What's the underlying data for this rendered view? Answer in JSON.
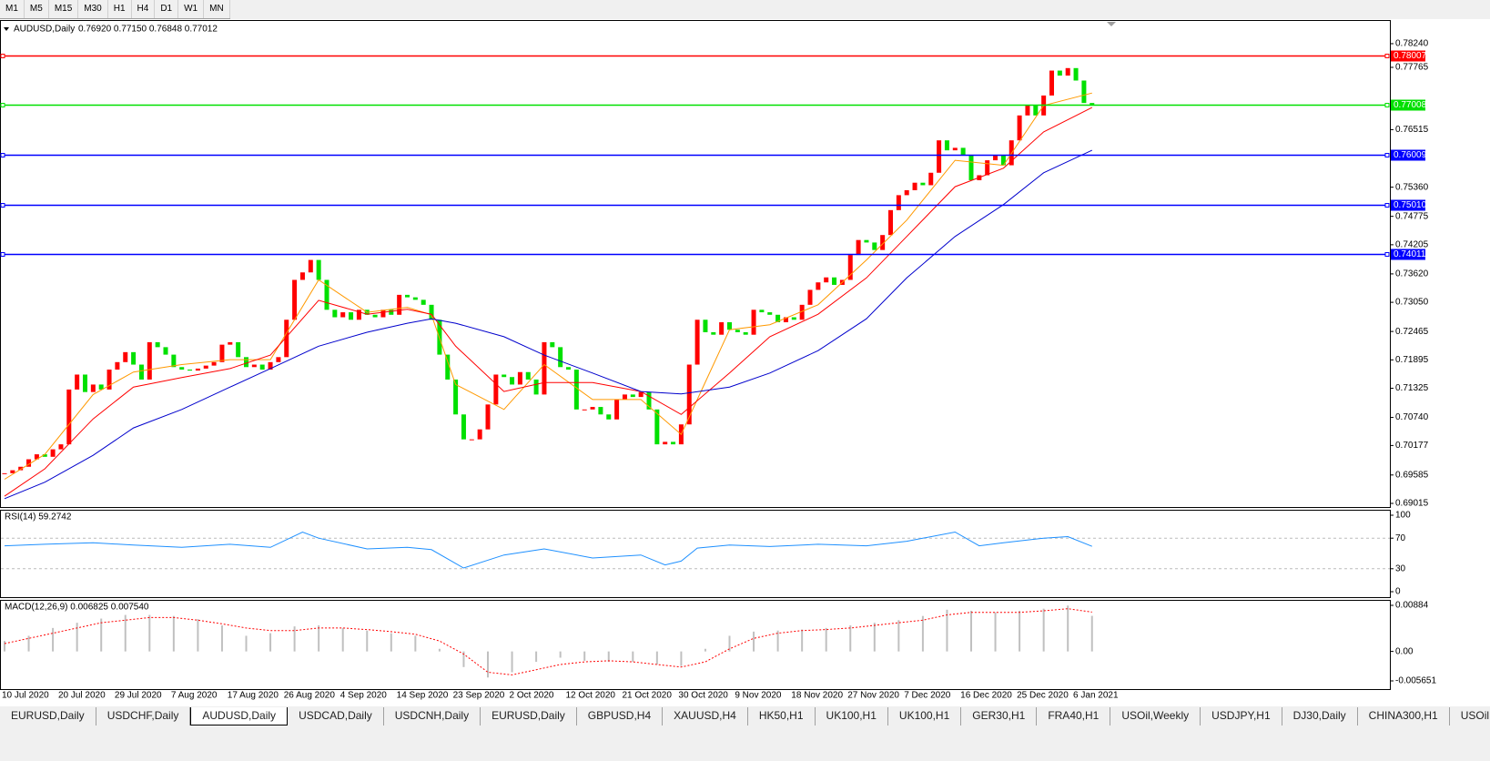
{
  "toolbar": {
    "timeframes": [
      "M1",
      "M5",
      "M15",
      "M30",
      "H1",
      "H4",
      "D1",
      "W1",
      "MN"
    ]
  },
  "tabs": {
    "items": [
      "EURUSD,Daily",
      "USDCHF,Daily",
      "AUDUSD,Daily",
      "USDCAD,Daily",
      "USDCNH,Daily",
      "EURUSD,Daily",
      "GBPUSD,H4",
      "XAUUSD,H4",
      "HK50,H1",
      "UK100,H1",
      "UK100,H1",
      "GER30,H1",
      "FRA40,H1",
      "USOil,Weekly",
      "USDJPY,H1",
      "DJ30,Daily",
      "CHINA300,H1",
      "USOil,"
    ],
    "active": 2
  },
  "chart_data": [
    {
      "type": "candlestick",
      "title": "AUDUSD,Daily",
      "ohlc": "0.76920 0.77150 0.76848 0.77012",
      "up_color": "#ff0000",
      "down_color": "#00e000",
      "categories": [
        "10 Jul 2020",
        null,
        null,
        null,
        null,
        null,
        null,
        "20 Jul 2020",
        null,
        null,
        null,
        null,
        null,
        null,
        "29 Jul 2020",
        null,
        null,
        null,
        null,
        null,
        null,
        "7 Aug 2020",
        null,
        null,
        null,
        null,
        null,
        null,
        "17 Aug 2020",
        null,
        null,
        null,
        null,
        null,
        null,
        "26 Aug 2020",
        null,
        null,
        null,
        null,
        null,
        null,
        "4 Sep 2020",
        null,
        null,
        null,
        null,
        null,
        null,
        "14 Sep 2020",
        null,
        null,
        null,
        null,
        null,
        null,
        "23 Sep 2020",
        null,
        null,
        null,
        null,
        null,
        null,
        "2 Oct 2020",
        null,
        null,
        null,
        null,
        null,
        null,
        "12 Oct 2020",
        null,
        null,
        null,
        null,
        null,
        null,
        "21 Oct 2020",
        null,
        null,
        null,
        null,
        null,
        null,
        "30 Oct 2020",
        null,
        null,
        null,
        null,
        null,
        null,
        "9 Nov 2020",
        null,
        null,
        null,
        null,
        null,
        null,
        "18 Nov 2020",
        null,
        null,
        null,
        null,
        null,
        null,
        "27 Nov 2020",
        null,
        null,
        null,
        null,
        null,
        null,
        "7 Dec 2020",
        null,
        null,
        null,
        null,
        null,
        null,
        "16 Dec 2020",
        null,
        null,
        null,
        null,
        null,
        null,
        "25 Dec 2020",
        null,
        null,
        null,
        null,
        null,
        null,
        "6 Jan 2021",
        null,
        null
      ],
      "close": [
        0.6962,
        0.6968,
        0.6975,
        0.699,
        0.7,
        0.6995,
        0.701,
        0.702,
        0.713,
        0.716,
        0.7125,
        0.714,
        0.713,
        0.717,
        0.7185,
        0.7205,
        0.718,
        0.715,
        0.7225,
        0.7215,
        0.72,
        0.7175,
        0.717,
        0.7168,
        0.7172,
        0.7178,
        0.7185,
        0.722,
        0.7225,
        0.7195,
        0.7175,
        0.718,
        0.717,
        0.7185,
        0.7195,
        0.727,
        0.735,
        0.7365,
        0.739,
        0.735,
        0.729,
        0.7275,
        0.7285,
        0.727,
        0.729,
        0.728,
        0.7275,
        0.729,
        0.728,
        0.732,
        0.7315,
        0.731,
        0.73,
        0.727,
        0.72,
        0.715,
        0.708,
        0.703,
        0.703,
        0.705,
        0.71,
        0.716,
        0.7155,
        0.714,
        0.7165,
        0.715,
        0.712,
        0.7225,
        0.7215,
        0.7175,
        0.717,
        0.709,
        0.709,
        0.7095,
        0.708,
        0.707,
        0.711,
        0.712,
        0.7115,
        0.7125,
        0.709,
        0.702,
        0.7025,
        0.702,
        0.706,
        0.718,
        0.727,
        0.7245,
        0.724,
        0.7265,
        0.725,
        0.7245,
        0.724,
        0.729,
        0.7285,
        0.728,
        0.7265,
        0.7275,
        0.727,
        0.73,
        0.733,
        0.7345,
        0.7355,
        0.734,
        0.735,
        0.74,
        0.743,
        0.7425,
        0.741,
        0.744,
        0.749,
        0.752,
        0.753,
        0.7545,
        0.754,
        0.7565,
        0.763,
        0.761,
        0.7615,
        0.76,
        0.755,
        0.756,
        0.759,
        0.76,
        0.758,
        0.763,
        0.768,
        0.77,
        0.768,
        0.772,
        0.777,
        0.776,
        0.7775,
        0.775,
        0.7705,
        0.77012
      ],
      "moving_averages": {
        "x": [
          0,
          5,
          11,
          16,
          22,
          28,
          33,
          39,
          45,
          50,
          53,
          56,
          62,
          67,
          73,
          79,
          84,
          90,
          95,
          101,
          107,
          112,
          118,
          124,
          129,
          135
        ],
        "series": [
          {
            "color": "#ff9900",
            "values": [
              0.695,
              0.7,
              0.712,
              0.7165,
              0.718,
              0.719,
              0.719,
              0.735,
              0.7285,
              0.7295,
              0.728,
              0.714,
              0.709,
              0.718,
              0.711,
              0.711,
              0.704,
              0.725,
              0.726,
              0.73,
              0.739,
              0.747,
              0.759,
              0.758,
              0.77,
              0.7725
            ]
          },
          {
            "color": "#ff0000",
            "values": [
              0.6916,
              0.6971,
              0.7071,
              0.7135,
              0.7154,
              0.7172,
              0.7199,
              0.7309,
              0.7281,
              0.7291,
              0.7281,
              0.7217,
              0.7126,
              0.7144,
              0.7144,
              0.7126,
              0.708,
              0.7163,
              0.7236,
              0.7281,
              0.7354,
              0.7437,
              0.7537,
              0.7574,
              0.7647,
              0.7696
            ]
          },
          {
            "color": "#0000cc",
            "values": [
              0.6911,
              0.6944,
              0.6998,
              0.7053,
              0.709,
              0.7135,
              0.7172,
              0.7217,
              0.7245,
              0.7263,
              0.7272,
              0.7263,
              0.7236,
              0.7199,
              0.7163,
              0.7126,
              0.7121,
              0.7135,
              0.7163,
              0.7208,
              0.7272,
              0.7354,
              0.7437,
              0.7501,
              0.7565,
              0.761
            ]
          }
        ]
      },
      "levels": [
        {
          "value": 0.78007,
          "color": "#ff0000"
        },
        {
          "value": 0.77008,
          "color": "#00e000"
        },
        {
          "value": 0.76009,
          "color": "#0000ff"
        },
        {
          "value": 0.7501,
          "label": "0.75010",
          "color": "#0000ff"
        },
        {
          "value": 0.74011,
          "color": "#0000ff"
        }
      ],
      "ylim": [
        0.68942,
        0.78678
      ],
      "yticks": [
        {
          "value": 0.7824,
          "label": "0.78240"
        },
        0.77765,
        0.76515,
        {
          "value": 0.7536,
          "label": "0.75360"
        },
        0.74775,
        0.74205,
        {
          "value": 0.7362,
          "label": "0.73620"
        },
        {
          "value": 0.7305,
          "label": "0.73050"
        },
        0.72465,
        0.71895,
        0.71325,
        {
          "value": 0.7074,
          "label": "0.70740"
        },
        0.70177,
        0.69585,
        0.69015
      ]
    },
    {
      "type": "line",
      "title": "RSI(14) 59.2742",
      "color": "#1e90ff",
      "x": [
        0,
        5,
        11,
        16,
        22,
        28,
        33,
        37,
        39,
        45,
        50,
        53,
        57,
        62,
        67,
        73,
        79,
        82,
        84,
        86,
        90,
        95,
        101,
        107,
        112,
        118,
        121,
        124,
        129,
        132,
        135
      ],
      "values": [
        60,
        62,
        64,
        61,
        58,
        62,
        58,
        78,
        70,
        56,
        58,
        55,
        31,
        48,
        56,
        44,
        48,
        35,
        40,
        57,
        61,
        59,
        62,
        60,
        66,
        78,
        60,
        64,
        70,
        72,
        59.2742
      ],
      "levels": [
        70,
        30
      ],
      "ylim": [
        0,
        100
      ],
      "yticks": [
        100,
        70,
        30,
        0
      ]
    },
    {
      "type": "macd",
      "title": "MACD(12,26,9) 0.006825 0.007540",
      "x": [
        0,
        3,
        6,
        9,
        12,
        15,
        18,
        21,
        24,
        27,
        30,
        33,
        36,
        39,
        42,
        45,
        48,
        51,
        54,
        57,
        60,
        63,
        66,
        69,
        72,
        75,
        78,
        81,
        84,
        87,
        90,
        93,
        96,
        99,
        102,
        105,
        108,
        111,
        114,
        117,
        120,
        123,
        126,
        129,
        132,
        135
      ],
      "series": [
        {
          "kind": "bar",
          "color": "#c0c0c0",
          "values": [
            0.002,
            0.003,
            0.0045,
            0.0055,
            0.0063,
            0.007,
            0.007,
            0.0068,
            0.0062,
            0.005,
            0.003,
            0.0035,
            0.0048,
            0.005,
            0.0045,
            0.004,
            0.0035,
            0.003,
            0.0005,
            -0.003,
            -0.005,
            -0.004,
            -0.002,
            -0.0012,
            -0.0018,
            -0.002,
            -0.002,
            -0.0025,
            -0.0028,
            0.0005,
            0.003,
            0.0038,
            0.004,
            0.0042,
            0.0045,
            0.005,
            0.0055,
            0.006,
            0.0068,
            0.008,
            0.0078,
            0.0075,
            0.0078,
            0.0082,
            0.0088,
            0.006825
          ]
        },
        {
          "kind": "line",
          "color": "#ff0000",
          "values": [
            0.0015,
            0.0025,
            0.0035,
            0.0045,
            0.0055,
            0.006,
            0.0065,
            0.0065,
            0.006,
            0.0053,
            0.0045,
            0.004,
            0.004,
            0.0045,
            0.0045,
            0.0042,
            0.0038,
            0.0033,
            0.002,
            -0.0005,
            -0.004,
            -0.0045,
            -0.0035,
            -0.0025,
            -0.002,
            -0.0018,
            -0.002,
            -0.0025,
            -0.003,
            -0.002,
            0.0005,
            0.0025,
            0.0035,
            0.004,
            0.0042,
            0.0045,
            0.005,
            0.0055,
            0.006,
            0.007,
            0.0075,
            0.0075,
            0.0075,
            0.0078,
            0.0082,
            0.00754
          ]
        }
      ],
      "ylim": [
        -0.005651,
        0.00884
      ],
      "yticks": [
        0.00884,
        {
          "value": 0,
          "label": "0.00"
        },
        -0.005651
      ]
    }
  ]
}
